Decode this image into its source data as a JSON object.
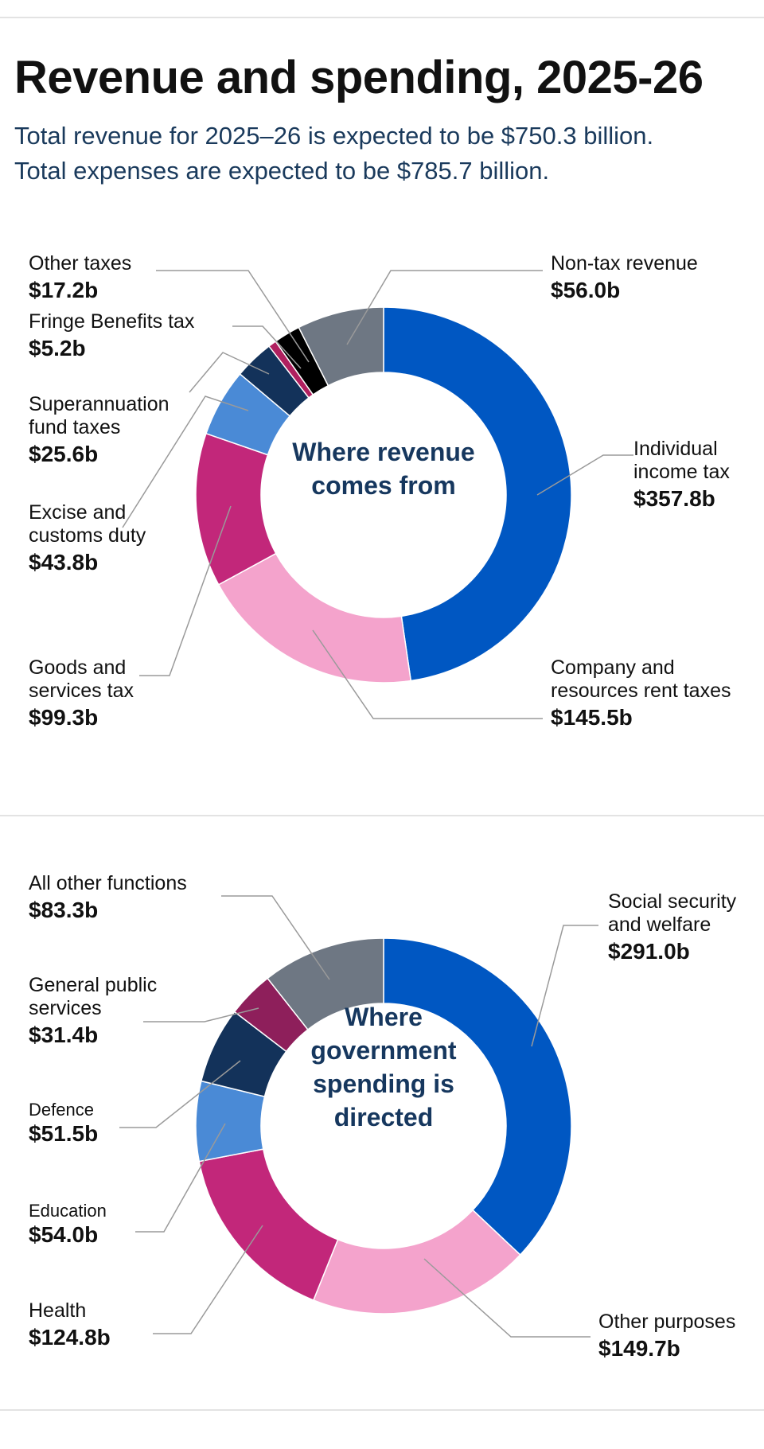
{
  "header": {
    "title": "Revenue and spending, 2025-26",
    "subtitle_line1": "Total revenue for 2025–26 is expected to be $750.3 billion.",
    "subtitle_line2": "Total expenses are expected to be $785.7 billion."
  },
  "chart_data": [
    {
      "type": "pie",
      "title": "Where revenue comes from",
      "center_lines": [
        "Where revenue",
        "comes from"
      ],
      "units": "$ billion",
      "slices": [
        {
          "key": "individual",
          "label_lines": [
            "Individual",
            "income tax"
          ],
          "value": 357.8,
          "value_label": "$357.8b",
          "color": "#0057c2"
        },
        {
          "key": "company",
          "label_lines": [
            "Company and",
            "resources rent taxes"
          ],
          "value": 145.5,
          "value_label": "$145.5b",
          "color": "#f4a3cc"
        },
        {
          "key": "gst",
          "label_lines": [
            "Goods and",
            "services tax"
          ],
          "value": 99.3,
          "value_label": "$99.3b",
          "color": "#c2277a"
        },
        {
          "key": "excise",
          "label_lines": [
            "Excise and",
            "customs duty"
          ],
          "value": 43.8,
          "value_label": "$43.8b",
          "color": "#4a8ad6"
        },
        {
          "key": "super",
          "label_lines": [
            "Superannuation",
            "fund taxes"
          ],
          "value": 25.6,
          "value_label": "$25.6b",
          "color": "#13325a"
        },
        {
          "key": "fringe",
          "label_lines": [
            "Fringe Benefits tax"
          ],
          "value": 5.2,
          "value_label": "$5.2b",
          "color": "#b0205f"
        },
        {
          "key": "other_taxes",
          "label_lines": [
            "Other taxes"
          ],
          "value": 17.2,
          "value_label": "$17.2b",
          "color": "#000000"
        },
        {
          "key": "non_tax",
          "label_lines": [
            "Non-tax revenue"
          ],
          "value": 56.0,
          "value_label": "$56.0b",
          "color": "#6e7783"
        }
      ]
    },
    {
      "type": "pie",
      "title": "Where government spending is directed",
      "center_lines": [
        "Where",
        "government",
        "spending is",
        "directed"
      ],
      "units": "$ billion",
      "slices": [
        {
          "key": "social",
          "label_lines": [
            "Social security",
            "and welfare"
          ],
          "value": 291.0,
          "value_label": "$291.0b",
          "color": "#0057c2"
        },
        {
          "key": "other_purposes",
          "label_lines": [
            "Other purposes"
          ],
          "value": 149.7,
          "value_label": "$149.7b",
          "color": "#f4a3cc"
        },
        {
          "key": "health",
          "label_lines": [
            "Health"
          ],
          "value": 124.8,
          "value_label": "$124.8b",
          "color": "#c2277a"
        },
        {
          "key": "education",
          "label_lines": [
            "Education"
          ],
          "value": 54.0,
          "value_label": "$54.0b",
          "color": "#4a8ad6"
        },
        {
          "key": "defence",
          "label_lines": [
            "Defence"
          ],
          "value": 51.5,
          "value_label": "$51.5b",
          "color": "#13325a"
        },
        {
          "key": "general_public",
          "label_lines": [
            "General public",
            "services"
          ],
          "value": 31.4,
          "value_label": "$31.4b",
          "color": "#8e1f5b"
        },
        {
          "key": "all_other",
          "label_lines": [
            "All other functions"
          ],
          "value": 83.3,
          "value_label": "$83.3b",
          "color": "#6e7783"
        }
      ]
    }
  ]
}
